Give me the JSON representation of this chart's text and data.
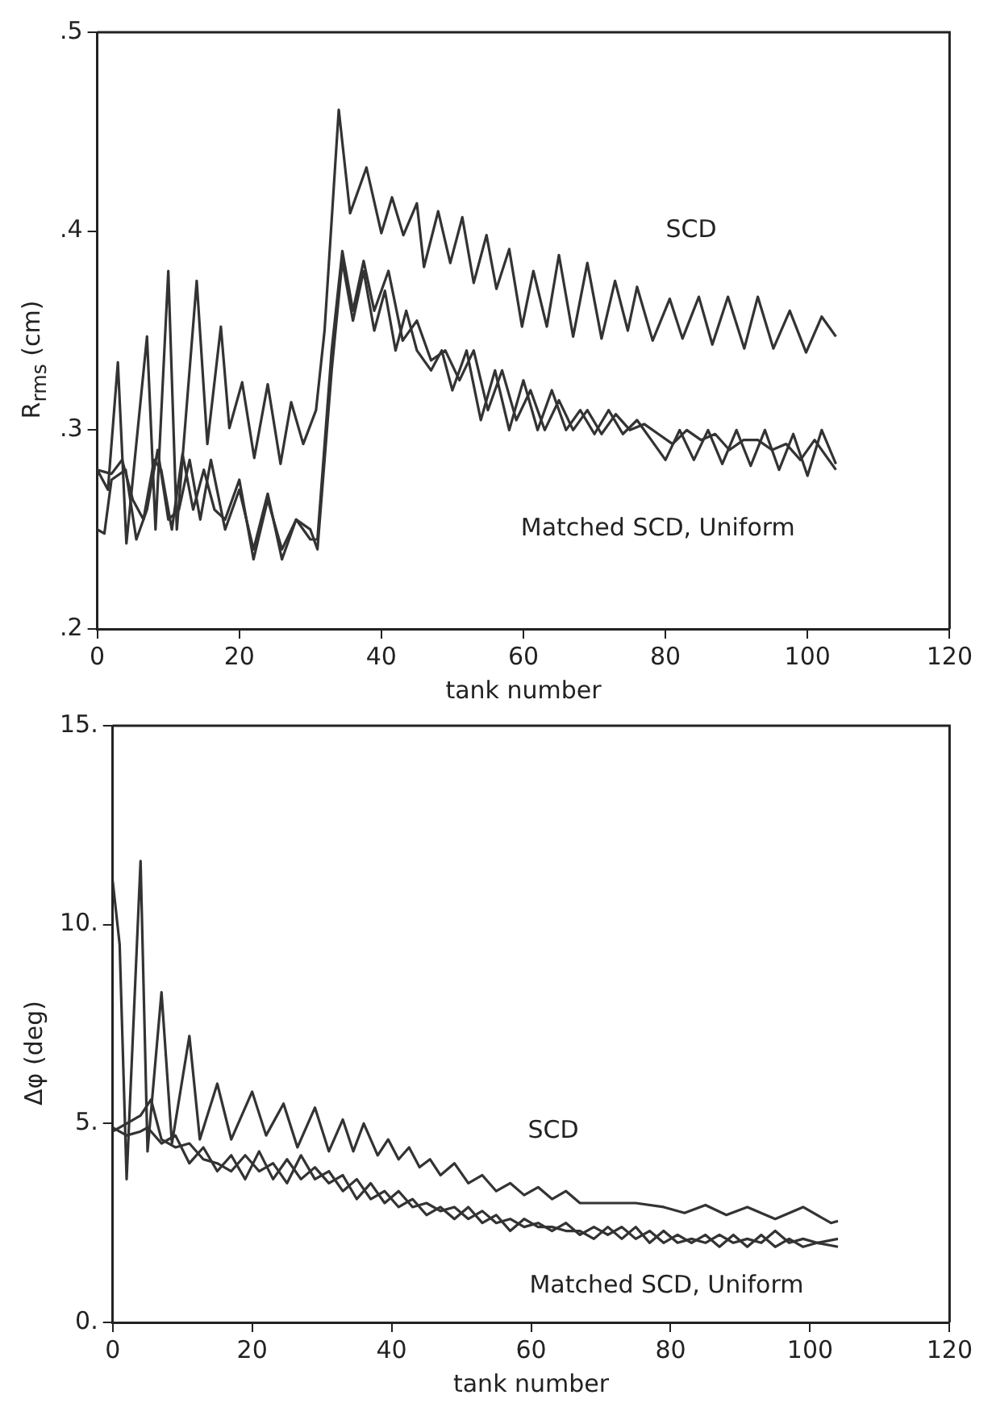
{
  "chart_data": [
    {
      "type": "line",
      "ylabel": "R$_{rms}$ (cm)",
      "xlabel": "tank number",
      "xlim": [
        0,
        120
      ],
      "xticks": [
        0,
        20,
        40,
        60,
        80,
        100,
        120
      ],
      "ylim": [
        0.2,
        0.5
      ],
      "yticks": [
        {
          "value": 0.2,
          "label": ".2"
        },
        {
          "value": 0.3,
          "label": ".3"
        },
        {
          "value": 0.4,
          "label": ".4"
        },
        {
          "value": 0.5,
          "label": ".5"
        }
      ],
      "grid": false,
      "legend": false,
      "marker": "none",
      "line_style": "solid",
      "annotations": [
        "SCD",
        "Matched SCD, Uniform"
      ],
      "series": [
        {
          "color": "#333333",
          "x": [
            0,
            1.5,
            2.9,
            4.1,
            7,
            8.2,
            10,
            11.2,
            14,
            15.5,
            17.4,
            18.6,
            20.4,
            22.1,
            24,
            25.8,
            27.3,
            29,
            30.8,
            32,
            34,
            35.6,
            37.9,
            40,
            41.5,
            43.1,
            45,
            46,
            48,
            49.7,
            51.4,
            53,
            54.8,
            56.2,
            58,
            59.8,
            61.4,
            63.3,
            65,
            67,
            69,
            71,
            72.9,
            74.7,
            76,
            78.2,
            80.6,
            82.4,
            84.7,
            86.6,
            88.8,
            91.1,
            93,
            95.2,
            97.5,
            99.8,
            102,
            104
          ],
          "values": [
            0.28,
            0.27,
            0.334,
            0.243,
            0.347,
            0.25,
            0.38,
            0.25,
            0.375,
            0.293,
            0.352,
            0.301,
            0.324,
            0.286,
            0.323,
            0.283,
            0.314,
            0.293,
            0.31,
            0.35,
            0.461,
            0.409,
            0.432,
            0.399,
            0.417,
            0.398,
            0.414,
            0.382,
            0.41,
            0.384,
            0.407,
            0.374,
            0.398,
            0.371,
            0.391,
            0.352,
            0.38,
            0.352,
            0.388,
            0.347,
            0.384,
            0.346,
            0.375,
            0.35,
            0.372,
            0.345,
            0.366,
            0.346,
            0.367,
            0.343,
            0.367,
            0.341,
            0.367,
            0.341,
            0.36,
            0.339,
            0.357,
            0.347
          ]
        },
        {
          "color": "#333333",
          "x": [
            0,
            2,
            3.5,
            5,
            6.5,
            8,
            9,
            10.5,
            12,
            13.5,
            15,
            16.5,
            18,
            20,
            22,
            24,
            26,
            28,
            30,
            31,
            33,
            34.5,
            36,
            37.5,
            39,
            41,
            43,
            45,
            47,
            49,
            51,
            53,
            55,
            57,
            59,
            61,
            63,
            65,
            67,
            69,
            71,
            73,
            75,
            77,
            79,
            81,
            83,
            85,
            87,
            89,
            91,
            93,
            95,
            97,
            99,
            101,
            104
          ],
          "values": [
            0.28,
            0.278,
            0.285,
            0.265,
            0.255,
            0.285,
            0.28,
            0.25,
            0.288,
            0.26,
            0.28,
            0.26,
            0.255,
            0.275,
            0.235,
            0.265,
            0.24,
            0.255,
            0.245,
            0.245,
            0.34,
            0.39,
            0.36,
            0.385,
            0.36,
            0.38,
            0.345,
            0.355,
            0.335,
            0.34,
            0.325,
            0.34,
            0.31,
            0.33,
            0.305,
            0.32,
            0.3,
            0.315,
            0.3,
            0.31,
            0.298,
            0.308,
            0.3,
            0.303,
            0.298,
            0.293,
            0.3,
            0.295,
            0.298,
            0.29,
            0.295,
            0.295,
            0.29,
            0.293,
            0.285,
            0.295,
            0.28
          ]
        },
        {
          "color": "#333333",
          "x": [
            0,
            1,
            2,
            4,
            5.5,
            7,
            8.5,
            10,
            11.5,
            13,
            14.5,
            16,
            18,
            20,
            22,
            24,
            26,
            28,
            30,
            31,
            33,
            34.5,
            36,
            37.5,
            39,
            40.5,
            42,
            43.5,
            45,
            47,
            48.5,
            50,
            52,
            54,
            56,
            58,
            60,
            62,
            64,
            66,
            68,
            70,
            72,
            74,
            76,
            78,
            80,
            82,
            84,
            86,
            88,
            90,
            92,
            94,
            96,
            98,
            100,
            102,
            104
          ],
          "values": [
            0.25,
            0.248,
            0.275,
            0.28,
            0.245,
            0.26,
            0.29,
            0.255,
            0.26,
            0.285,
            0.255,
            0.285,
            0.25,
            0.27,
            0.24,
            0.268,
            0.235,
            0.255,
            0.25,
            0.24,
            0.33,
            0.385,
            0.355,
            0.38,
            0.35,
            0.37,
            0.34,
            0.36,
            0.34,
            0.33,
            0.34,
            0.32,
            0.34,
            0.305,
            0.33,
            0.3,
            0.325,
            0.3,
            0.32,
            0.3,
            0.31,
            0.298,
            0.31,
            0.298,
            0.305,
            0.295,
            0.285,
            0.3,
            0.285,
            0.3,
            0.283,
            0.3,
            0.282,
            0.3,
            0.28,
            0.298,
            0.277,
            0.3,
            0.283
          ]
        }
      ]
    },
    {
      "type": "line",
      "ylabel": "Δφ (deg)",
      "xlabel": "tank number",
      "xlim": [
        0,
        120
      ],
      "xticks": [
        0,
        20,
        40,
        60,
        80,
        100,
        120
      ],
      "ylim": [
        0,
        15
      ],
      "yticks": [
        {
          "value": 0,
          "label": "0."
        },
        {
          "value": 5,
          "label": "5."
        },
        {
          "value": 10,
          "label": "10."
        },
        {
          "value": 15,
          "label": "15."
        }
      ],
      "grid": false,
      "legend": false,
      "marker": "none",
      "line_style": "solid",
      "annotations": [
        "SCD",
        "Matched SCD, Uniform"
      ],
      "series": [
        {
          "color": "#333333",
          "x": [
            0,
            1,
            2,
            4,
            5,
            7,
            8.5,
            11,
            12.5,
            15,
            17,
            20,
            22,
            24.5,
            26.5,
            29,
            31,
            33,
            34.5,
            36,
            38,
            39.5,
            41,
            42.5,
            44,
            45.5,
            47,
            49,
            51,
            53,
            55,
            57,
            59,
            61,
            63,
            65,
            67,
            70,
            75,
            79,
            82,
            85,
            88,
            91,
            95,
            99,
            103,
            104
          ],
          "values": [
            11.1,
            9.5,
            3.6,
            11.6,
            4.3,
            8.3,
            4.5,
            7.2,
            4.6,
            6,
            4.6,
            5.8,
            4.7,
            5.5,
            4.4,
            5.4,
            4.3,
            5.1,
            4.3,
            5,
            4.2,
            4.6,
            4.1,
            4.4,
            3.9,
            4.1,
            3.7,
            4,
            3.5,
            3.7,
            3.3,
            3.5,
            3.2,
            3.4,
            3.1,
            3.3,
            3,
            3,
            3,
            2.9,
            2.75,
            2.95,
            2.7,
            2.9,
            2.6,
            2.9,
            2.5,
            2.55
          ]
        },
        {
          "color": "#333333",
          "x": [
            0,
            2,
            4,
            5,
            7,
            9,
            11,
            13,
            15,
            17,
            19,
            21,
            23,
            25,
            27,
            29,
            31,
            33,
            35,
            37,
            39,
            41,
            43,
            45,
            47,
            49,
            51,
            53,
            55,
            57,
            59,
            61,
            63,
            65,
            67,
            69,
            71,
            73,
            75,
            77,
            79,
            81,
            83,
            85,
            87,
            89,
            91,
            93,
            95,
            97,
            99,
            101,
            104
          ],
          "values": [
            4.9,
            4.7,
            4.8,
            4.9,
            4.5,
            4.7,
            4,
            4.4,
            3.8,
            4.2,
            3.6,
            4.3,
            3.6,
            4.1,
            3.6,
            3.9,
            3.5,
            3.7,
            3.1,
            3.5,
            3,
            3.3,
            2.9,
            3,
            2.8,
            2.9,
            2.6,
            2.8,
            2.5,
            2.6,
            2.4,
            2.5,
            2.3,
            2.5,
            2.2,
            2.4,
            2.2,
            2.4,
            2.1,
            2.3,
            2,
            2.2,
            2,
            2.2,
            1.9,
            2.2,
            1.9,
            2.2,
            1.9,
            2.1,
            1.9,
            2,
            1.9
          ]
        },
        {
          "color": "#333333",
          "x": [
            0,
            2,
            4,
            5.5,
            7,
            9,
            11,
            13,
            15,
            17,
            19,
            21,
            23,
            25,
            27,
            29,
            31,
            33,
            35,
            37,
            39,
            41,
            43,
            45,
            47,
            49,
            51,
            53,
            55,
            57,
            59,
            61,
            63,
            65,
            67,
            69,
            71,
            73,
            75,
            77,
            79,
            81,
            83,
            85,
            87,
            89,
            91,
            93,
            95,
            97,
            99,
            101,
            104
          ],
          "values": [
            4.8,
            5,
            5.2,
            5.6,
            4.6,
            4.4,
            4.5,
            4.1,
            4,
            3.8,
            4.2,
            3.8,
            4,
            3.5,
            4.2,
            3.6,
            3.8,
            3.3,
            3.6,
            3.1,
            3.3,
            2.9,
            3.1,
            2.7,
            2.9,
            2.6,
            2.9,
            2.5,
            2.7,
            2.3,
            2.6,
            2.4,
            2.4,
            2.3,
            2.3,
            2.1,
            2.4,
            2.1,
            2.4,
            2,
            2.3,
            2,
            2.1,
            2,
            2.2,
            2,
            2.1,
            2,
            2.3,
            2,
            2.1,
            2,
            2.1
          ]
        }
      ]
    }
  ]
}
